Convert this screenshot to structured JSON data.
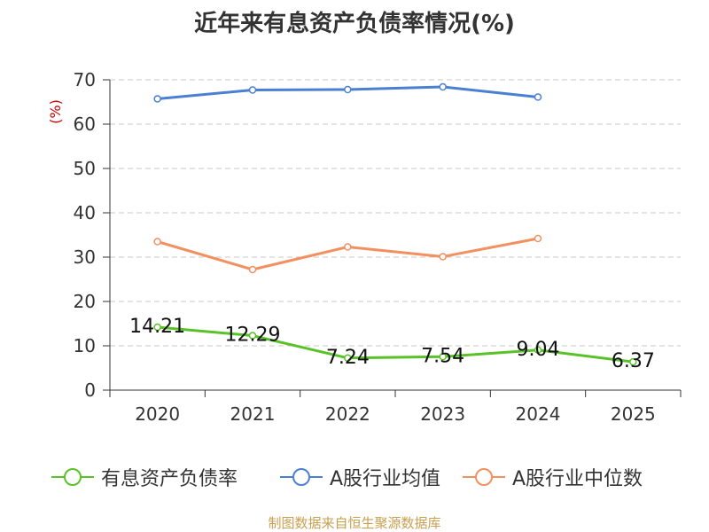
{
  "chart_data": {
    "type": "line",
    "title": "近年来有息资产负债率情况(%)",
    "ylabel": "(%)",
    "xlabel": "",
    "categories": [
      "2020",
      "2021",
      "2022",
      "2023",
      "2024",
      "2025"
    ],
    "ylim": [
      0,
      70
    ],
    "yticks": [
      0,
      10,
      20,
      30,
      40,
      50,
      60,
      70
    ],
    "grid": "horizontal dashed",
    "legend_position": "bottom",
    "series": [
      {
        "name": "有息资产负债率",
        "color": "#5ac229",
        "values": [
          14.21,
          12.29,
          7.24,
          7.54,
          9.04,
          6.37
        ],
        "data_labels": [
          "14.21",
          "12.29",
          "7.24",
          "7.54",
          "9.04",
          "6.37"
        ]
      },
      {
        "name": "A股行业均值",
        "color": "#4a7fd4",
        "values": [
          65.7,
          67.7,
          67.8,
          68.4,
          66.1,
          null
        ]
      },
      {
        "name": "A股行业中位数",
        "color": "#f29060",
        "values": [
          33.5,
          27.2,
          32.3,
          30.1,
          34.2,
          null
        ]
      }
    ]
  },
  "source_text": "制图数据来自恒生聚源数据库"
}
